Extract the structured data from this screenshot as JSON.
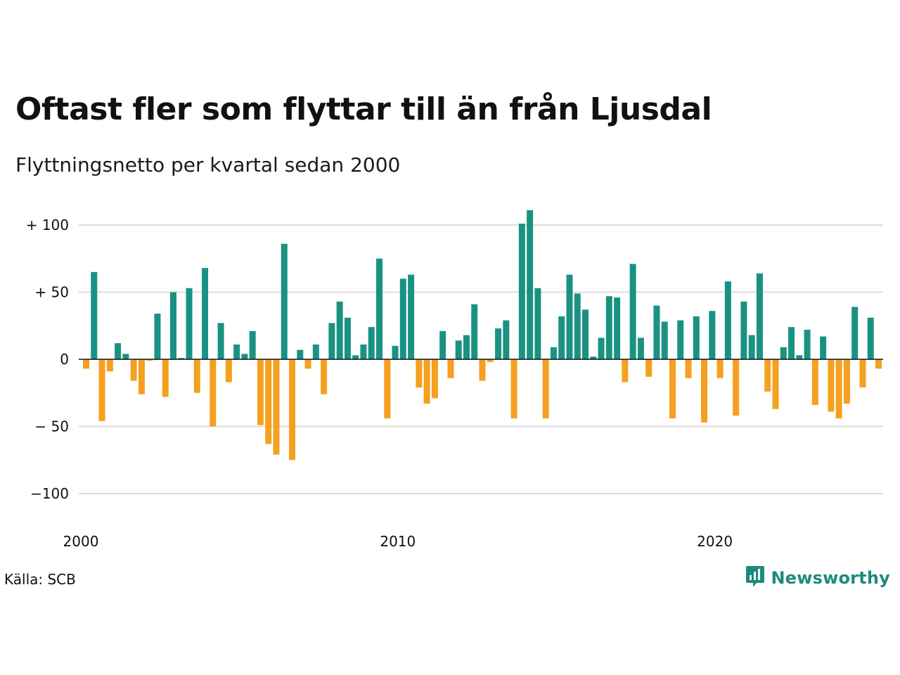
{
  "title": "Oftast fler som flyttar till än från Ljusdal",
  "subtitle": "Flyttningsnetto per kvartal sedan 2000",
  "source": "Källa: SCB",
  "brand": {
    "name": "Newsworthy",
    "icon": "newsworthy-logo-icon"
  },
  "colors": {
    "positive": "#1a9282",
    "negative": "#f5a020",
    "grid": "#dddddd",
    "zero_line": "#111111",
    "brand": "#1e8a7b"
  },
  "chart_data": {
    "type": "bar",
    "title": "Oftast fler som flyttar till än från Ljusdal",
    "subtitle": "Flyttningsnetto per kvartal sedan 2000",
    "xlabel": "",
    "ylabel": "",
    "ylim": [
      -110,
      110
    ],
    "grid": true,
    "yticks": [
      100,
      50,
      0,
      -50,
      -100
    ],
    "ytick_labels": [
      "+ 100",
      "+  50",
      "0",
      "− 50",
      "−100"
    ],
    "xticks": [
      {
        "year": 2000,
        "label": "2000"
      },
      {
        "year": 2010,
        "label": "2010"
      },
      {
        "year": 2020,
        "label": "2020"
      }
    ],
    "start_year": 2000,
    "values": [
      -7,
      65,
      -46,
      -9,
      12,
      4,
      -16,
      -26,
      -1,
      34,
      -28,
      50,
      1,
      53,
      -25,
      68,
      -50,
      27,
      -17,
      11,
      4,
      21,
      -49,
      -63,
      -71,
      86,
      -75,
      7,
      -7,
      11,
      -26,
      27,
      43,
      31,
      3,
      11,
      24,
      75,
      -44,
      10,
      60,
      63,
      -21,
      -33,
      -29,
      21,
      -14,
      14,
      18,
      41,
      -16,
      -2,
      23,
      29,
      -44,
      101,
      111,
      53,
      -44,
      9,
      32,
      63,
      49,
      37,
      2,
      16,
      47,
      46,
      -17,
      71,
      16,
      -13,
      40,
      28,
      -44,
      29,
      -14,
      32,
      -47,
      36,
      -14,
      58,
      -42,
      43,
      18,
      64,
      -24,
      -37,
      9,
      24,
      3,
      22,
      -34,
      17,
      -39,
      -44,
      -33,
      39,
      -21,
      31,
      -7
    ]
  }
}
